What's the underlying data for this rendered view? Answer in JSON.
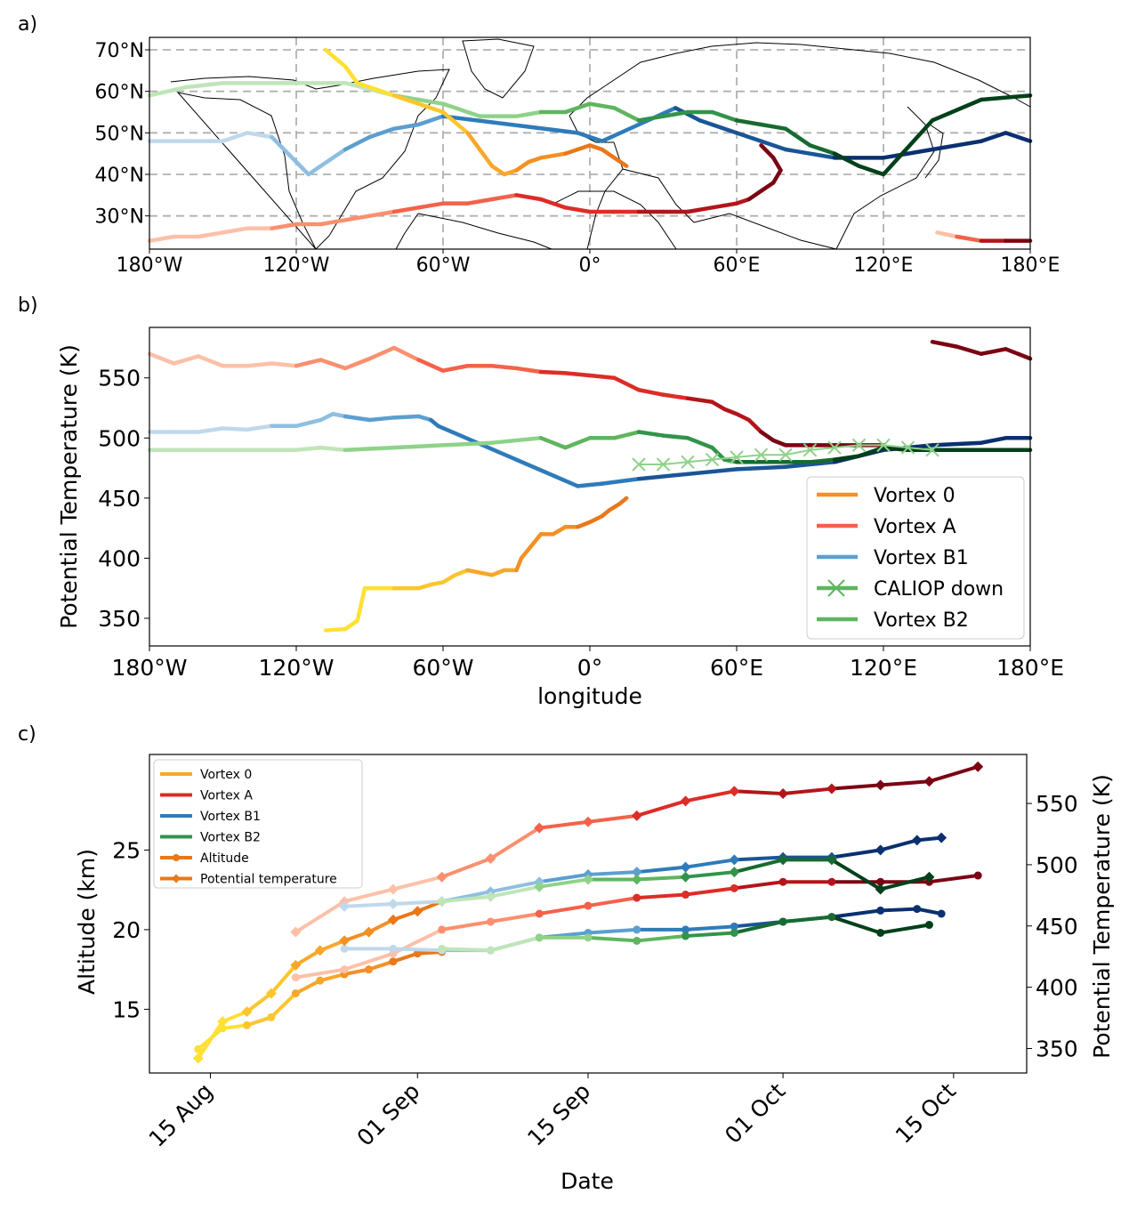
{
  "colors": {
    "vortex0": [
      "#ffe033",
      "#fdc52e",
      "#f8a72a",
      "#f39023",
      "#e8781a"
    ],
    "vortexA": [
      "#fcc0a8",
      "#fb8f6e",
      "#f4614a",
      "#dc2d27",
      "#b3151b",
      "#7a0413"
    ],
    "vortexB1": [
      "#c0d8ec",
      "#8ebfe0",
      "#5b9fcf",
      "#2f7bba",
      "#1a5596",
      "#0a3070"
    ],
    "vortexB2": [
      "#bfe5b8",
      "#8fd28a",
      "#5fb55f",
      "#32944a",
      "#176b30",
      "#00401a"
    ],
    "axis": "#000000",
    "grid": "#b0b0b0"
  },
  "panels": {
    "a": {
      "label": "a)",
      "xticks": [
        "180°W",
        "120°W",
        "60°W",
        "0°",
        "60°E",
        "120°E",
        "180°E"
      ],
      "yticks": [
        "30°N",
        "40°N",
        "50°N",
        "60°N",
        "70°N"
      ]
    },
    "b": {
      "label": "b)",
      "xlabel": "longitude",
      "ylabel": "Potential Temperature (K)",
      "xticks": [
        "180°W",
        "120°W",
        "60°W",
        "0°",
        "60°E",
        "120°E",
        "180°E"
      ],
      "yticks": [
        "350",
        "400",
        "450",
        "500",
        "550"
      ],
      "legend": [
        "Vortex 0",
        "Vortex A",
        "Vortex B1",
        "CALIOP down",
        "Vortex B2"
      ]
    },
    "c": {
      "label": "c)",
      "xlabel": "Date",
      "ylabel_left": "Altitude (km)",
      "ylabel_right": "Potential Temperature (K)",
      "xticks": [
        "15 Aug",
        "01 Sep",
        "15 Sep",
        "01 Oct",
        "15 Oct"
      ],
      "yticks_left": [
        "15",
        "20",
        "25"
      ],
      "yticks_right": [
        "350",
        "400",
        "450",
        "500",
        "550"
      ],
      "legend": [
        "Vortex 0",
        "Vortex A",
        "Vortex B1",
        "Vortex B2",
        "Altitude",
        "Potential temperature"
      ]
    }
  },
  "chart_data": [
    {
      "type": "line",
      "panel": "a",
      "xlabel": "",
      "ylabel": "",
      "xlim": [
        -180,
        180
      ],
      "ylim": [
        22,
        73
      ],
      "grid": true,
      "series": [
        {
          "name": "Vortex A",
          "x": [
            -180,
            -170,
            -160,
            -150,
            -140,
            -130,
            -120,
            -110,
            -100,
            -90,
            -80,
            -70,
            -60,
            -50,
            -40,
            -30,
            -20,
            -10,
            0,
            10,
            20,
            30,
            40,
            50,
            60,
            65,
            70,
            75,
            78,
            75,
            70
          ],
          "y": [
            24,
            25,
            25,
            26,
            27,
            27,
            28,
            28,
            29,
            30,
            31,
            32,
            33,
            33,
            34,
            35,
            34,
            32,
            31,
            31,
            31,
            31,
            31,
            32,
            33,
            34,
            36,
            38,
            41,
            44,
            47
          ]
        },
        {
          "name": "Vortex A (east)",
          "x": [
            142,
            150,
            160,
            170,
            180
          ],
          "y": [
            26,
            25,
            24,
            24,
            24
          ]
        },
        {
          "name": "Vortex B1",
          "x": [
            -180,
            -165,
            -150,
            -140,
            -130,
            -120,
            -115,
            -110,
            -100,
            -90,
            -80,
            -70,
            -60,
            -5,
            5,
            20,
            35,
            45,
            60,
            80,
            100,
            120,
            140,
            160,
            170,
            180
          ],
          "y": [
            48,
            48,
            48,
            50,
            49,
            43,
            40,
            42,
            46,
            49,
            51,
            52,
            54,
            50,
            48,
            52,
            56,
            53,
            50,
            46,
            44,
            44,
            46,
            48,
            50,
            48
          ]
        },
        {
          "name": "Vortex B2",
          "x": [
            -180,
            -165,
            -150,
            -120,
            -100,
            -80,
            -60,
            -45,
            -30,
            -20,
            -10,
            0,
            10,
            20,
            30,
            40,
            50,
            60,
            70,
            80,
            90,
            100,
            110,
            120,
            140,
            160,
            180
          ],
          "y": [
            59,
            61,
            62,
            62,
            62,
            59,
            57,
            54,
            54,
            55,
            55,
            57,
            56,
            53,
            54,
            55,
            55,
            53,
            52,
            51,
            47,
            45,
            42,
            40,
            53,
            58,
            59
          ]
        },
        {
          "name": "Vortex 0",
          "x": [
            -108,
            -100,
            -95,
            -90,
            -80,
            -70,
            -60,
            -50,
            -45,
            -40,
            -35,
            -30,
            -25,
            -20,
            -10,
            0,
            5,
            10,
            15
          ],
          "y": [
            70,
            66,
            62,
            61,
            59,
            57,
            55,
            50,
            46,
            42,
            40,
            41,
            43,
            44,
            45,
            47,
            46,
            44,
            42
          ]
        }
      ]
    },
    {
      "type": "line",
      "panel": "b",
      "xlabel": "longitude",
      "ylabel": "Potential Temperature (K)",
      "xlim": [
        -180,
        180
      ],
      "ylim": [
        327,
        592
      ],
      "grid": false,
      "legend_position": "lower-right",
      "series": [
        {
          "name": "Vortex 0",
          "x": [
            -108,
            -100,
            -95,
            -92,
            -85,
            -80,
            -70,
            -65,
            -60,
            -55,
            -50,
            -45,
            -40,
            -35,
            -30,
            -28,
            -20,
            -15,
            -10,
            -5,
            0,
            5,
            8,
            12,
            15
          ],
          "y": [
            340,
            341,
            348,
            375,
            375,
            375,
            375,
            378,
            380,
            386,
            390,
            388,
            386,
            390,
            390,
            400,
            420,
            420,
            426,
            426,
            430,
            435,
            440,
            445,
            450
          ]
        },
        {
          "name": "Vortex A",
          "x": [
            -180,
            -170,
            -160,
            -150,
            -140,
            -130,
            -120,
            -110,
            -100,
            -90,
            -80,
            -70,
            -60,
            -50,
            -40,
            -30,
            -20,
            -10,
            0,
            10,
            20,
            30,
            40,
            50,
            55,
            60,
            65,
            70,
            75,
            80,
            90,
            100,
            110,
            120,
            140,
            150,
            160,
            170,
            180
          ],
          "y": [
            570,
            562,
            568,
            560,
            560,
            562,
            560,
            565,
            558,
            566,
            575,
            565,
            556,
            560,
            560,
            558,
            555,
            554,
            552,
            550,
            540,
            536,
            533,
            530,
            524,
            520,
            515,
            505,
            498,
            494,
            494,
            494,
            494,
            494,
            580,
            576,
            570,
            574,
            566
          ]
        },
        {
          "name": "Vortex B1",
          "x": [
            -180,
            -170,
            -160,
            -150,
            -140,
            -130,
            -120,
            -110,
            -105,
            -100,
            -90,
            -80,
            -70,
            -65,
            -62,
            -5,
            5,
            20,
            40,
            60,
            80,
            100,
            120,
            140,
            160,
            170,
            180
          ],
          "y": [
            505,
            505,
            505,
            508,
            507,
            510,
            510,
            515,
            520,
            518,
            515,
            517,
            518,
            515,
            510,
            460,
            462,
            466,
            470,
            474,
            476,
            480,
            490,
            494,
            496,
            500,
            500
          ]
        },
        {
          "name": "Vortex B2",
          "x": [
            -180,
            -160,
            -140,
            -120,
            -110,
            -100,
            -80,
            -60,
            -40,
            -20,
            -10,
            0,
            10,
            20,
            30,
            40,
            50,
            55,
            60,
            70,
            80,
            90,
            100,
            110,
            120,
            130,
            150,
            180
          ],
          "y": [
            490,
            490,
            490,
            490,
            492,
            490,
            492,
            494,
            496,
            500,
            492,
            500,
            500,
            505,
            502,
            500,
            492,
            482,
            480,
            480,
            480,
            480,
            482,
            485,
            492,
            490,
            490,
            490
          ]
        },
        {
          "name": "CALIOP down",
          "x": [
            20,
            30,
            40,
            50,
            60,
            70,
            80,
            90,
            100,
            110,
            120,
            130,
            140
          ],
          "y": [
            478,
            478,
            480,
            482,
            484,
            486,
            486,
            490,
            492,
            494,
            494,
            492,
            490
          ]
        }
      ]
    },
    {
      "type": "line",
      "panel": "c",
      "xlabel": "Date",
      "ylabel": "Altitude (km)",
      "ylabel_right": "Potential Temperature (K)",
      "xlim": [
        "2019-08-10",
        "2019-10-21"
      ],
      "ylim": [
        11,
        31
      ],
      "ylim_right": [
        330,
        590
      ],
      "legend_position": "top-left",
      "series": [
        {
          "name": "Vortex 0",
          "quantity": "Altitude",
          "x": [
            "2019-08-14",
            "2019-08-16",
            "2019-08-18",
            "2019-08-20",
            "2019-08-22",
            "2019-08-24",
            "2019-08-26",
            "2019-08-28",
            "2019-08-30",
            "2019-09-01",
            "2019-09-03"
          ],
          "y": [
            12.5,
            13.8,
            14,
            14.5,
            16,
            16.8,
            17.2,
            17.5,
            18,
            18.5,
            18.6
          ]
        },
        {
          "name": "Vortex A",
          "quantity": "Altitude",
          "x": [
            "2019-08-22",
            "2019-08-26",
            "2019-08-30",
            "2019-09-03",
            "2019-09-07",
            "2019-09-11",
            "2019-09-15",
            "2019-09-19",
            "2019-09-23",
            "2019-09-27",
            "2019-10-01",
            "2019-10-05",
            "2019-10-09",
            "2019-10-13",
            "2019-10-17"
          ],
          "y": [
            17,
            17.5,
            18.5,
            20,
            20.5,
            21,
            21.5,
            22,
            22.2,
            22.6,
            23,
            23,
            23,
            23,
            23.4
          ]
        },
        {
          "name": "Vortex B1",
          "quantity": "Altitude",
          "x": [
            "2019-08-26",
            "2019-08-30",
            "2019-09-03",
            "2019-09-07",
            "2019-09-11",
            "2019-09-15",
            "2019-09-19",
            "2019-09-23",
            "2019-09-27",
            "2019-10-01",
            "2019-10-05",
            "2019-10-09",
            "2019-10-12",
            "2019-10-14"
          ],
          "y": [
            18.8,
            18.8,
            18.7,
            18.7,
            19.5,
            19.8,
            20,
            20,
            20.2,
            20.5,
            20.8,
            21.2,
            21.3,
            21
          ]
        },
        {
          "name": "Vortex B2",
          "quantity": "Altitude",
          "x": [
            "2019-09-03",
            "2019-09-07",
            "2019-09-11",
            "2019-09-15",
            "2019-09-19",
            "2019-09-23",
            "2019-09-27",
            "2019-10-01",
            "2019-10-05",
            "2019-10-09",
            "2019-10-13"
          ],
          "y": [
            18.8,
            18.7,
            19.5,
            19.5,
            19.3,
            19.6,
            19.8,
            20.5,
            20.8,
            19.8,
            20.3
          ]
        },
        {
          "name": "Vortex 0",
          "quantity": "Potential temperature",
          "x": [
            "2019-08-14",
            "2019-08-16",
            "2019-08-18",
            "2019-08-20",
            "2019-08-22",
            "2019-08-24",
            "2019-08-26",
            "2019-08-28",
            "2019-08-30",
            "2019-09-01",
            "2019-09-03"
          ],
          "y": [
            342,
            372,
            380,
            395,
            418,
            430,
            438,
            445,
            455,
            462,
            470
          ]
        },
        {
          "name": "Vortex A",
          "quantity": "Potential temperature",
          "x": [
            "2019-08-22",
            "2019-08-26",
            "2019-08-30",
            "2019-09-03",
            "2019-09-07",
            "2019-09-11",
            "2019-09-15",
            "2019-09-19",
            "2019-09-23",
            "2019-09-27",
            "2019-10-01",
            "2019-10-05",
            "2019-10-09",
            "2019-10-13",
            "2019-10-17"
          ],
          "y": [
            445,
            470,
            480,
            490,
            505,
            530,
            535,
            540,
            552,
            560,
            558,
            562,
            565,
            568,
            580
          ]
        },
        {
          "name": "Vortex B1",
          "quantity": "Potential temperature",
          "x": [
            "2019-08-26",
            "2019-08-30",
            "2019-09-03",
            "2019-09-07",
            "2019-09-11",
            "2019-09-15",
            "2019-09-19",
            "2019-09-23",
            "2019-09-27",
            "2019-10-01",
            "2019-10-05",
            "2019-10-09",
            "2019-10-12",
            "2019-10-14"
          ],
          "y": [
            466,
            468,
            470,
            478,
            486,
            492,
            494,
            498,
            504,
            506,
            506,
            512,
            520,
            522
          ]
        },
        {
          "name": "Vortex B2",
          "quantity": "Potential temperature",
          "x": [
            "2019-09-03",
            "2019-09-07",
            "2019-09-11",
            "2019-09-15",
            "2019-09-19",
            "2019-09-23",
            "2019-09-27",
            "2019-10-01",
            "2019-10-05",
            "2019-10-09",
            "2019-10-13"
          ],
          "y": [
            470,
            474,
            482,
            488,
            488,
            490,
            494,
            504,
            504,
            480,
            490
          ]
        }
      ]
    }
  ]
}
